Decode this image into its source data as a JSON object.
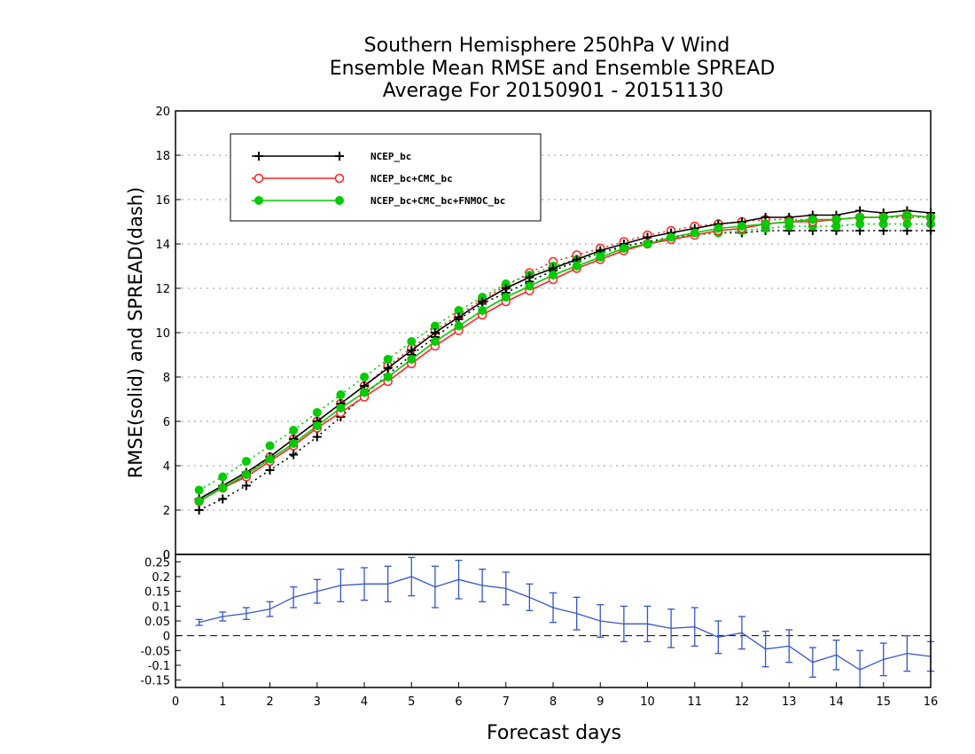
{
  "chart_data": [
    {
      "type": "line",
      "title_lines": [
        "Southern Hemisphere 250hPa V Wind",
        "Ensemble Mean RMSE and Ensemble SPREAD",
        "Average For 20150901 - 20151130"
      ],
      "ylabel": "RMSE(solid) and SPREAD(dash)",
      "xlim": [
        0,
        16
      ],
      "ylim": [
        0,
        20
      ],
      "yticks": [
        0,
        2,
        4,
        6,
        8,
        10,
        12,
        14,
        16,
        18,
        20
      ],
      "grid": true,
      "legend_position": "top-left",
      "x": [
        0.5,
        1,
        1.5,
        2,
        2.5,
        3,
        3.5,
        4,
        4.5,
        5,
        5.5,
        6,
        6.5,
        7,
        7.5,
        8,
        8.5,
        9,
        9.5,
        10,
        10.5,
        11,
        11.5,
        12,
        12.5,
        13,
        13.5,
        14,
        14.5,
        15,
        15.5,
        16
      ],
      "series": [
        {
          "name": "NCEP_bc",
          "color": "#000000",
          "marker": "plus",
          "rmse": [
            2.5,
            3.1,
            3.7,
            4.4,
            5.2,
            6.0,
            6.8,
            7.6,
            8.4,
            9.2,
            10.0,
            10.7,
            11.4,
            12.0,
            12.5,
            12.9,
            13.3,
            13.7,
            14.0,
            14.3,
            14.5,
            14.7,
            14.9,
            15.0,
            15.2,
            15.2,
            15.3,
            15.3,
            15.5,
            15.4,
            15.5,
            15.4
          ],
          "spread": [
            2.0,
            2.5,
            3.1,
            3.8,
            4.5,
            5.3,
            6.2,
            7.2,
            8.1,
            9.0,
            9.8,
            10.6,
            11.3,
            11.8,
            12.3,
            12.8,
            13.2,
            13.6,
            13.9,
            14.1,
            14.3,
            14.4,
            14.5,
            14.5,
            14.6,
            14.6,
            14.6,
            14.6,
            14.6,
            14.6,
            14.6,
            14.6
          ]
        },
        {
          "name": "NCEP_bc+CMC_bc",
          "color": "#ff2020",
          "marker": "open-circle",
          "rmse": [
            2.4,
            3.0,
            3.5,
            4.2,
            4.9,
            5.7,
            6.4,
            7.1,
            7.8,
            8.6,
            9.4,
            10.1,
            10.8,
            11.4,
            11.9,
            12.4,
            12.9,
            13.3,
            13.7,
            14.0,
            14.2,
            14.4,
            14.6,
            14.7,
            14.9,
            15.0,
            15.0,
            15.1,
            15.2,
            15.2,
            15.3,
            15.2
          ],
          "spread": [
            2.4,
            3.0,
            3.6,
            4.4,
            5.2,
            6.0,
            6.8,
            7.6,
            8.5,
            9.3,
            10.1,
            10.8,
            11.5,
            12.1,
            12.7,
            13.2,
            13.5,
            13.8,
            14.1,
            14.4,
            14.6,
            14.8,
            14.9,
            15.0,
            15.1,
            15.1,
            15.1,
            15.1,
            15.2,
            15.2,
            15.2,
            15.2
          ]
        },
        {
          "name": "NCEP_bc+CMC_bc+FNMOC_bc",
          "color": "#00cc00",
          "marker": "filled-circle",
          "rmse": [
            2.4,
            3.0,
            3.6,
            4.3,
            5.0,
            5.8,
            6.6,
            7.3,
            8.0,
            8.8,
            9.6,
            10.3,
            11.0,
            11.6,
            12.1,
            12.6,
            13.0,
            13.4,
            13.8,
            14.0,
            14.3,
            14.5,
            14.7,
            14.8,
            14.9,
            15.0,
            15.1,
            15.1,
            15.2,
            15.2,
            15.3,
            15.2
          ],
          "spread": [
            2.9,
            3.5,
            4.2,
            4.9,
            5.6,
            6.4,
            7.2,
            8.0,
            8.8,
            9.6,
            10.3,
            11.0,
            11.6,
            12.2,
            12.6,
            13.0,
            13.3,
            13.6,
            13.8,
            14.0,
            14.2,
            14.4,
            14.5,
            14.6,
            14.7,
            14.8,
            14.8,
            14.8,
            14.9,
            14.9,
            14.9,
            14.9
          ]
        }
      ]
    },
    {
      "type": "line",
      "xlabel": "Forecast days",
      "xlim": [
        0,
        16
      ],
      "xticks": [
        0,
        1,
        2,
        3,
        4,
        5,
        6,
        7,
        8,
        9,
        10,
        11,
        12,
        13,
        14,
        15,
        16
      ],
      "ylim": [
        -0.175,
        0.275
      ],
      "yticks": [
        "-0.15",
        "-0.1",
        "-0.05",
        "0",
        "0.05",
        "0.1",
        "0.15",
        "0.2",
        "0.25"
      ],
      "zero_line": true,
      "series": [
        {
          "color": "#3355cc",
          "x": [
            0.5,
            1,
            1.5,
            2,
            2.5,
            3,
            3.5,
            4,
            4.5,
            5,
            5.5,
            6,
            6.5,
            7,
            7.5,
            8,
            8.5,
            9,
            9.5,
            10,
            10.5,
            11,
            11.5,
            12,
            12.5,
            13,
            13.5,
            14,
            14.5,
            15,
            15.5,
            16
          ],
          "values": [
            0.045,
            0.065,
            0.075,
            0.09,
            0.13,
            0.15,
            0.17,
            0.175,
            0.175,
            0.2,
            0.165,
            0.19,
            0.17,
            0.16,
            0.13,
            0.095,
            0.075,
            0.05,
            0.04,
            0.04,
            0.025,
            0.03,
            -0.005,
            0.01,
            -0.045,
            -0.035,
            -0.09,
            -0.065,
            -0.115,
            -0.08,
            -0.06,
            -0.07
          ],
          "error": [
            0.01,
            0.015,
            0.02,
            0.025,
            0.035,
            0.04,
            0.055,
            0.055,
            0.06,
            0.065,
            0.07,
            0.065,
            0.055,
            0.055,
            0.045,
            0.05,
            0.055,
            0.055,
            0.06,
            0.06,
            0.065,
            0.065,
            0.055,
            0.055,
            0.06,
            0.055,
            0.05,
            0.05,
            0.065,
            0.055,
            0.06,
            0.05
          ]
        }
      ]
    }
  ]
}
